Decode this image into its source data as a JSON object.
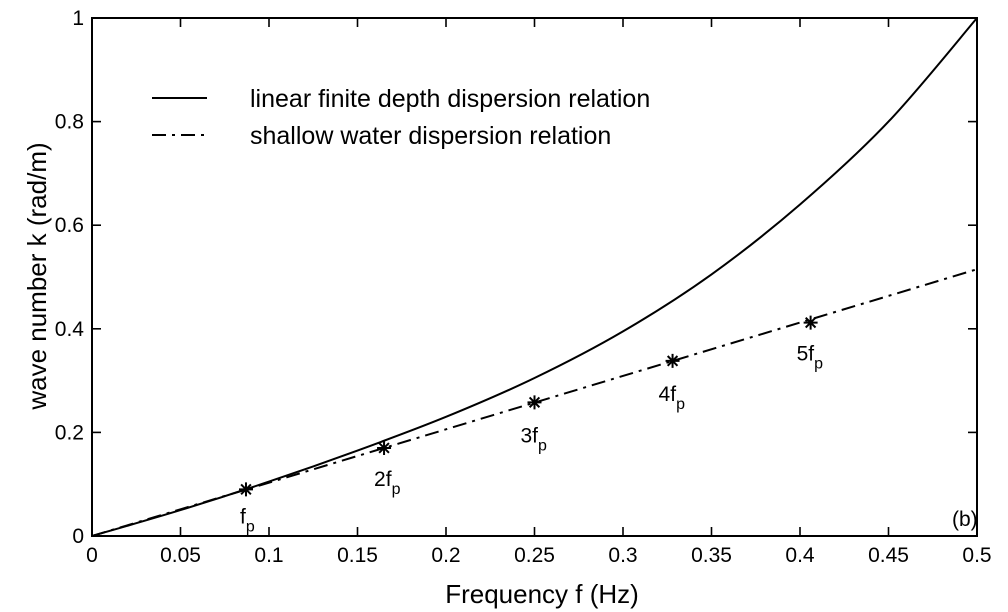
{
  "chart_data": {
    "type": "line",
    "xlabel": "Frequency f (Hz)",
    "ylabel": "wave number k (rad/m)",
    "panel_label": "(b)",
    "xlim": [
      0,
      0.5
    ],
    "ylim": [
      0,
      1
    ],
    "x_ticks": [
      "0",
      "0.05",
      "0.1",
      "0.15",
      "0.2",
      "0.25",
      "0.3",
      "0.35",
      "0.4",
      "0.45",
      "0.5"
    ],
    "y_ticks": [
      "0",
      "0.2",
      "0.4",
      "0.6",
      "0.8",
      "1"
    ],
    "grid": false,
    "legend_position": "top-left",
    "series": [
      {
        "name": "linear finite depth dispersion relation",
        "style": "solid",
        "x": [
          0,
          0.05,
          0.1,
          0.15,
          0.2,
          0.25,
          0.3,
          0.35,
          0.4,
          0.45,
          0.5
        ],
        "y": [
          0,
          0.05,
          0.105,
          0.165,
          0.23,
          0.305,
          0.395,
          0.505,
          0.64,
          0.8,
          1.0
        ]
      },
      {
        "name": "shallow water dispersion relation",
        "style": "dash-dot",
        "x": [
          0,
          0.5
        ],
        "y": [
          0,
          0.515
        ]
      }
    ],
    "markers": [
      {
        "x": 0.087,
        "y": 0.09,
        "label": "f",
        "sub": "p"
      },
      {
        "x": 0.165,
        "y": 0.17,
        "label": "2f",
        "sub": "p"
      },
      {
        "x": 0.25,
        "y": 0.258,
        "label": "3f",
        "sub": "p"
      },
      {
        "x": 0.328,
        "y": 0.338,
        "label": "4f",
        "sub": "p"
      },
      {
        "x": 0.406,
        "y": 0.412,
        "label": "5f",
        "sub": "p"
      }
    ]
  }
}
